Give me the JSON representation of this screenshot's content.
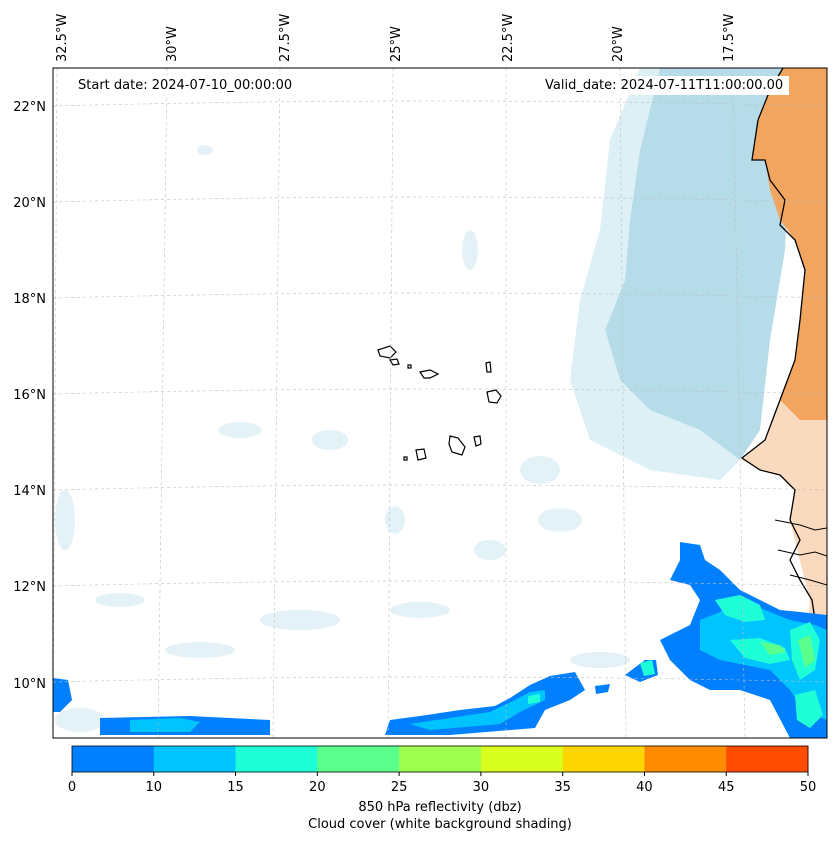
{
  "header": {
    "start_date": "Start date: 2024-07-10_00:00:00",
    "valid_date": "Valid_date: 2024-07-11T11:00:00.00"
  },
  "map": {
    "lon_labels": [
      "32.5°W",
      "30°W",
      "27.5°W",
      "25°W",
      "22.5°W",
      "20°W",
      "17.5°W"
    ],
    "lat_labels": [
      "22°N",
      "20°N",
      "18°N",
      "16°N",
      "14°N",
      "12°N",
      "10°N"
    ],
    "lon_values": [
      -32.5,
      -30,
      -27.5,
      -25,
      -22.5,
      -20,
      -17.5
    ],
    "lat_values": [
      22,
      20,
      18,
      16,
      14,
      12,
      10
    ],
    "land_color": "#f2a55f",
    "dust_color": "#add8e6",
    "coast_color": "#000000"
  },
  "colorbar": {
    "ticks": [
      "0",
      "10",
      "15",
      "20",
      "25",
      "30",
      "35",
      "40",
      "45",
      "50"
    ],
    "colors": [
      "#0080ff",
      "#00c4ff",
      "#1effd8",
      "#5aff8c",
      "#9eff50",
      "#d8ff1e",
      "#ffd700",
      "#ff8c00",
      "#ff4c00"
    ],
    "label_line1": "850 hPa reflectivity (dbz)",
    "label_line2": "Cloud cover (white background shading)"
  }
}
